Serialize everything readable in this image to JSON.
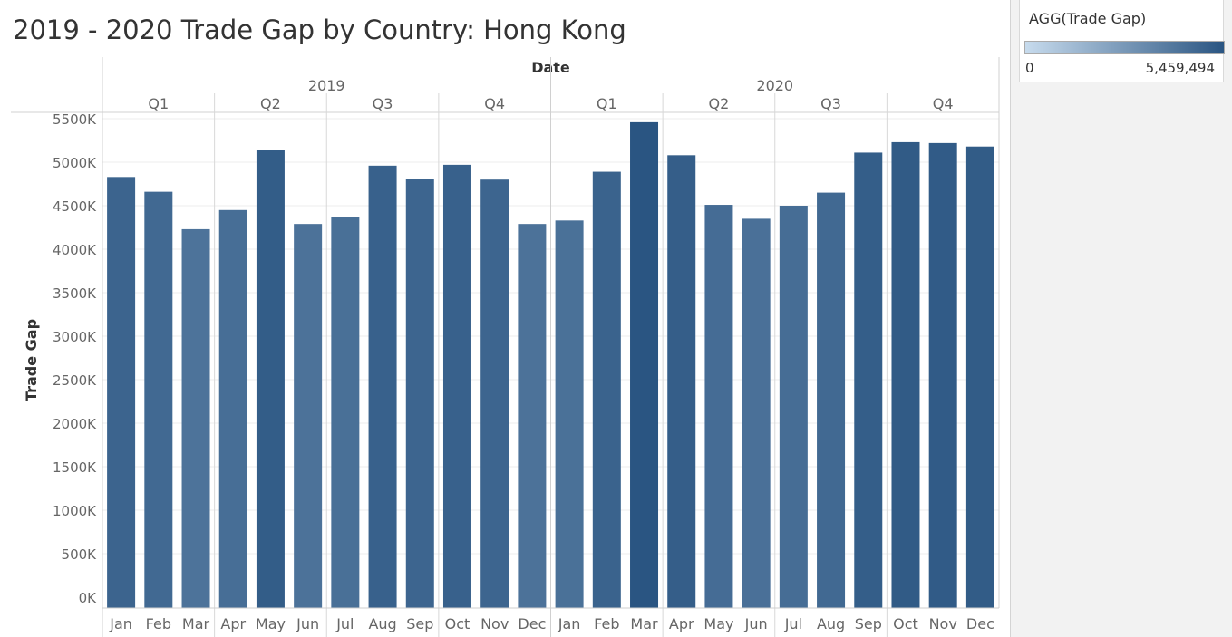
{
  "title": "2019 - 2020 Trade Gap by Country: Hong Kong",
  "legend": {
    "title": "AGG(Trade Gap)",
    "min_label": "0",
    "max_label": "5,459,494",
    "color_low": "#c7dbed",
    "color_high": "#2a5582"
  },
  "chart_data": {
    "type": "bar",
    "title": "2019 - 2020 Trade Gap by Country: Hong Kong",
    "column_header": "Date",
    "ylabel": "Trade Gap",
    "ylim": [
      0,
      5700000
    ],
    "yticks": [
      0,
      500000,
      1000000,
      1500000,
      2000000,
      2500000,
      3000000,
      3500000,
      4000000,
      4500000,
      5000000,
      5500000
    ],
    "ytick_labels": [
      "0K",
      "500K",
      "1000K",
      "1500K",
      "2000K",
      "2500K",
      "3000K",
      "3500K",
      "4000K",
      "4500K",
      "5000K",
      "5500K"
    ],
    "color_scale": {
      "min": 0,
      "max": 5459494,
      "low": "#c7dbed",
      "high": "#2a5582"
    },
    "grid": true,
    "years": [
      {
        "label": "2019",
        "quarters": [
          {
            "label": "Q1",
            "months": [
              "Jan",
              "Feb",
              "Mar"
            ],
            "values": [
              4830000,
              4660000,
              4230000
            ]
          },
          {
            "label": "Q2",
            "months": [
              "Apr",
              "May",
              "Jun"
            ],
            "values": [
              4450000,
              5140000,
              4290000
            ]
          },
          {
            "label": "Q3",
            "months": [
              "Jul",
              "Aug",
              "Sep"
            ],
            "values": [
              4370000,
              4960000,
              4810000
            ]
          },
          {
            "label": "Q4",
            "months": [
              "Oct",
              "Nov",
              "Dec"
            ],
            "values": [
              4970000,
              4800000,
              4290000
            ]
          }
        ]
      },
      {
        "label": "2020",
        "quarters": [
          {
            "label": "Q1",
            "months": [
              "Jan",
              "Feb",
              "Mar"
            ],
            "values": [
              4330000,
              4890000,
              5459494
            ]
          },
          {
            "label": "Q2",
            "months": [
              "Apr",
              "May",
              "Jun"
            ],
            "values": [
              5080000,
              4510000,
              4350000
            ]
          },
          {
            "label": "Q3",
            "months": [
              "Jul",
              "Aug",
              "Sep"
            ],
            "values": [
              4500000,
              4650000,
              5110000
            ]
          },
          {
            "label": "Q4",
            "months": [
              "Oct",
              "Nov",
              "Dec"
            ],
            "values": [
              5230000,
              5220000,
              5180000
            ]
          }
        ]
      }
    ]
  }
}
